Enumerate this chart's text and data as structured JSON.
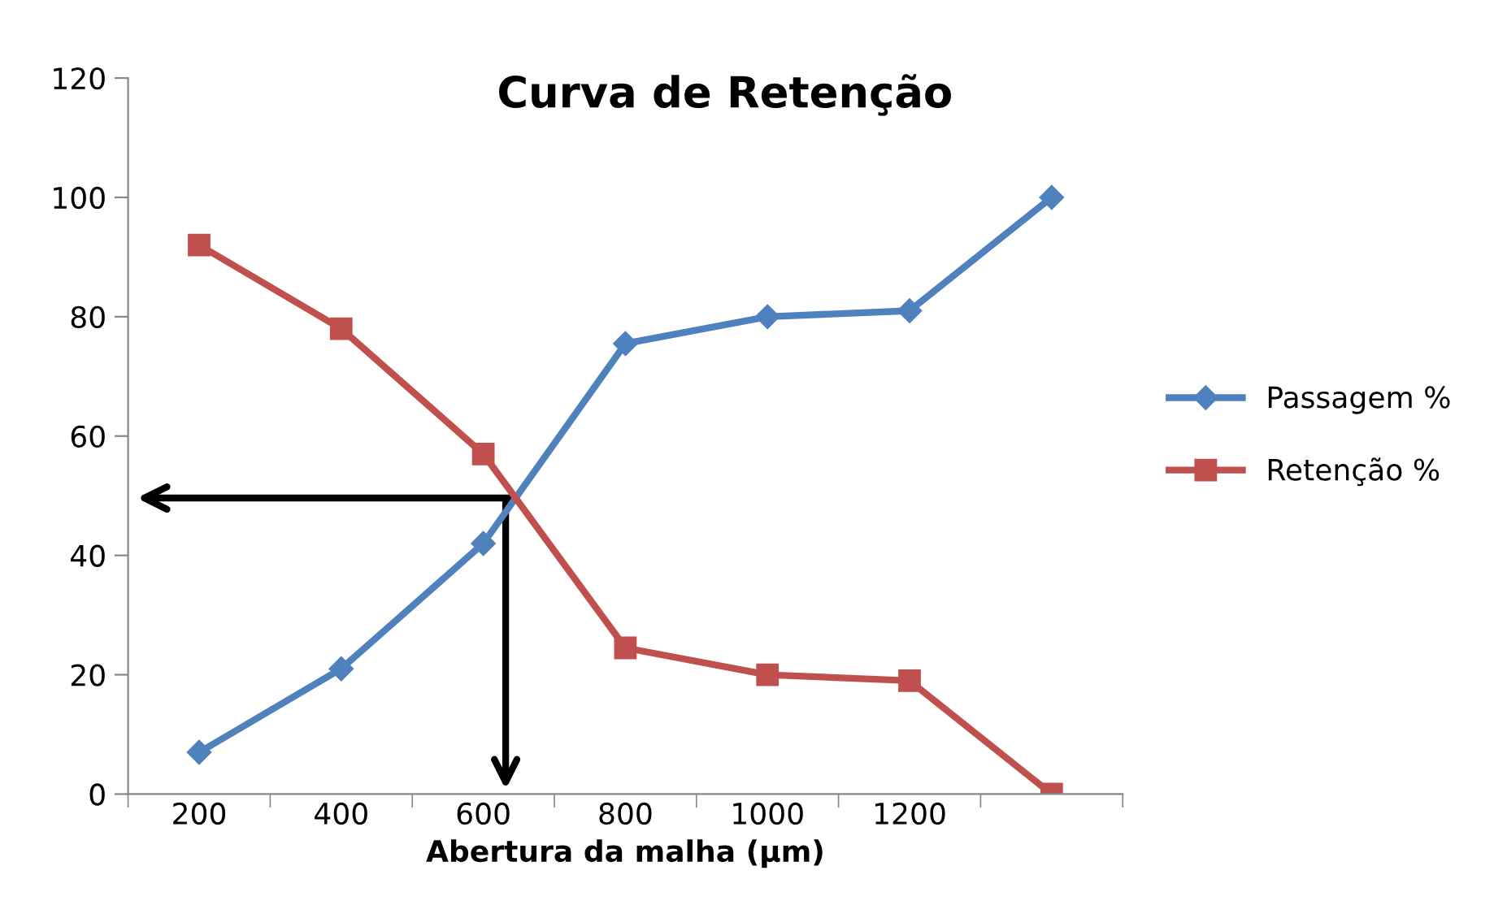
{
  "chart_data": {
    "type": "line",
    "title": "Curva de Retenção",
    "xlabel": "Abertura da malha (µm)",
    "categories": [
      "200",
      "400",
      "600",
      "800",
      "1000",
      "1200",
      null
    ],
    "series": [
      {
        "name": "Passagem %",
        "color": "#4f81bd",
        "marker": "diamond",
        "values": [
          7,
          21,
          42,
          75.5,
          80,
          81,
          100
        ]
      },
      {
        "name": "Retenção %",
        "color": "#c0504d",
        "marker": "square",
        "values": [
          92,
          78,
          57,
          24.5,
          20,
          19,
          0
        ]
      }
    ],
    "ylim": [
      0,
      120
    ],
    "yticks": [
      0,
      20,
      40,
      60,
      80,
      100,
      120
    ],
    "grid": false,
    "legend": "right",
    "line_style": "solid"
  }
}
